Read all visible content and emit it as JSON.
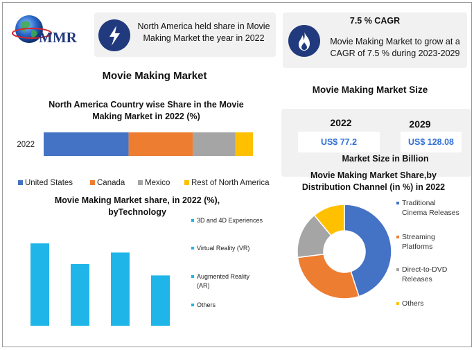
{
  "logo": {
    "text": "MMR"
  },
  "info_box_1": {
    "text": "North America held share in Movie Making Market the year in 2022",
    "icon": "lightning-bolt-icon"
  },
  "info_box_2": {
    "title": "7.5 % CAGR",
    "text": "Movie Making Market to grow at a CAGR of 7.5 % during 2023-2029",
    "icon": "flame-icon"
  },
  "main_title": "Movie Making Market",
  "market_size": {
    "title": "Movie Making Market Size",
    "year1": "2022",
    "value1": "US$ 77.2",
    "year2": "2029",
    "value2": "US$ 128.08",
    "caption": "Market Size in Billion"
  },
  "colors": {
    "navy": "#213a7d",
    "blue": "#4472c4",
    "orange": "#ed7d31",
    "gray": "#a5a5a5",
    "yellow": "#ffc000",
    "cyan": "#1fb5e8"
  },
  "chart_data": [
    {
      "type": "bar",
      "orientation": "horizontal-stacked",
      "title": "North America Country wise Share in the Movie Making Market in 2022 (%)",
      "categories": [
        "2022"
      ],
      "series": [
        {
          "name": "United States",
          "values": [
            41
          ]
        },
        {
          "name": "Canada",
          "values": [
            31
          ]
        },
        {
          "name": "Mexico",
          "values": [
            20.5
          ]
        },
        {
          "name": "Rest of North America",
          "values": [
            8.5
          ]
        }
      ],
      "legend": "bottom"
    },
    {
      "type": "bar",
      "title": "Movie Making Market share, in 2022 (%), byTechnology",
      "categories": [
        "3D and 4D Experiences",
        "Virtual Reality (VR)",
        "Augmented Reality (AR)",
        "Others"
      ],
      "values": [
        36,
        27,
        32,
        22
      ],
      "ylim": [
        0,
        40
      ],
      "legend": "right"
    },
    {
      "type": "pie",
      "subtype": "donut",
      "title": "Movie Making Market Share,by Distribution Channel (in %) in 2022",
      "labels": [
        "Traditional Cinema Releases",
        "Streaming Platforms",
        "Direct-to-DVD Releases",
        "Others"
      ],
      "values": [
        45,
        28,
        16,
        11
      ],
      "legend": "right"
    }
  ]
}
